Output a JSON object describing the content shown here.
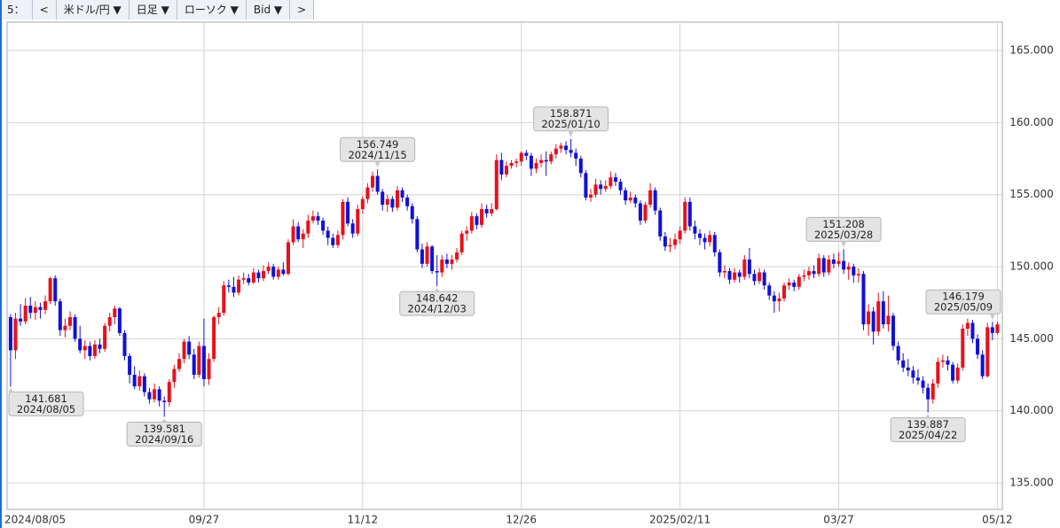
{
  "toolbar": [
    "5：",
    "<",
    "米ドル/円 ▼",
    "日足 ▼",
    "ローソク ▼",
    "Bid ▼",
    ">"
  ],
  "chart_data": {
    "type": "candlestick",
    "up_color": "#e8101c",
    "down_color": "#1010d8",
    "grid": true,
    "ylim": [
      133.16,
      166.97
    ],
    "yticks": [
      {
        "value": 135,
        "label": "135.000"
      },
      {
        "value": 140,
        "label": "140.000"
      },
      {
        "value": 145,
        "label": "145.000"
      },
      {
        "value": 150,
        "label": "150.000"
      },
      {
        "value": 155,
        "label": "155.000"
      },
      {
        "value": 160,
        "label": "160.000"
      },
      {
        "value": 165,
        "label": "165.000"
      }
    ],
    "xlim": [
      -0.7,
      200
    ],
    "xticks": [
      {
        "value": 0,
        "label": "2024/08/05"
      },
      {
        "value": 39,
        "label": "09/27"
      },
      {
        "value": 71,
        "label": "11/12"
      },
      {
        "value": 103,
        "label": "12/26"
      },
      {
        "value": 135,
        "label": "2025/02/11"
      },
      {
        "value": 167,
        "label": "03/27"
      },
      {
        "value": 199,
        "label": "05/12"
      }
    ],
    "annotations": [
      {
        "x": 0,
        "value": 141.681,
        "date": "2024/08/05"
      },
      {
        "x": 31,
        "value": 139.581,
        "date": "2024/09/16"
      },
      {
        "x": 74,
        "value": 156.749,
        "date": "2024/11/15"
      },
      {
        "x": 86,
        "value": 148.642,
        "date": "2024/12/03"
      },
      {
        "x": 113,
        "value": 158.871,
        "date": "2025/01/10"
      },
      {
        "x": 168,
        "value": 151.208,
        "date": "2025/03/28"
      },
      {
        "x": 185,
        "value": 139.887,
        "date": "2025/04/22"
      },
      {
        "x": 198,
        "value": 146.179,
        "date": "2025/05/09"
      }
    ],
    "candles": [
      [
        146.5,
        146.7,
        141.68,
        144.2
      ],
      [
        144.2,
        146.8,
        143.6,
        146.4
      ],
      [
        146.4,
        147.4,
        145.9,
        146.2
      ],
      [
        146.2,
        147.8,
        146.0,
        147.3
      ],
      [
        147.3,
        147.9,
        146.4,
        146.8
      ],
      [
        146.8,
        147.6,
        146.3,
        147.2
      ],
      [
        147.2,
        147.5,
        146.4,
        147.0
      ],
      [
        147.0,
        148.0,
        146.7,
        147.6
      ],
      [
        147.6,
        149.3,
        147.4,
        149.2
      ],
      [
        149.2,
        149.4,
        147.3,
        147.6
      ],
      [
        147.6,
        147.8,
        145.2,
        145.6
      ],
      [
        145.6,
        146.4,
        145.1,
        145.9
      ],
      [
        145.9,
        146.9,
        145.6,
        146.5
      ],
      [
        146.5,
        146.7,
        144.8,
        145.0
      ],
      [
        145.0,
        145.9,
        144.0,
        144.2
      ],
      [
        144.2,
        144.9,
        143.6,
        144.5
      ],
      [
        144.5,
        144.8,
        143.5,
        143.8
      ],
      [
        143.8,
        144.9,
        143.6,
        144.6
      ],
      [
        144.6,
        145.0,
        144.0,
        144.3
      ],
      [
        144.3,
        146.1,
        144.1,
        145.9
      ],
      [
        145.9,
        146.8,
        145.5,
        146.5
      ],
      [
        146.5,
        147.3,
        146.0,
        147.1
      ],
      [
        147.1,
        147.2,
        145.2,
        145.4
      ],
      [
        145.4,
        145.6,
        143.5,
        143.8
      ],
      [
        143.8,
        144.0,
        141.9,
        142.5
      ],
      [
        142.5,
        143.1,
        141.5,
        141.7
      ],
      [
        141.7,
        142.8,
        141.4,
        142.4
      ],
      [
        142.4,
        142.6,
        141.0,
        141.3
      ],
      [
        141.3,
        141.6,
        140.5,
        140.8
      ],
      [
        140.8,
        141.9,
        140.6,
        141.5
      ],
      [
        141.5,
        141.7,
        140.3,
        140.7
      ],
      [
        140.7,
        141.0,
        139.58,
        140.6
      ],
      [
        140.6,
        142.2,
        140.3,
        142.0
      ],
      [
        142.0,
        143.2,
        141.6,
        142.9
      ],
      [
        142.9,
        144.0,
        142.7,
        143.6
      ],
      [
        143.6,
        145.0,
        143.3,
        144.8
      ],
      [
        144.8,
        145.2,
        143.6,
        143.9
      ],
      [
        143.9,
        144.3,
        142.2,
        142.5
      ],
      [
        142.5,
        144.8,
        142.3,
        144.5
      ],
      [
        144.5,
        146.4,
        141.7,
        142.2
      ],
      [
        142.2,
        144.0,
        141.8,
        143.6
      ],
      [
        143.6,
        146.6,
        143.4,
        146.5
      ],
      [
        146.5,
        147.2,
        146.0,
        146.8
      ],
      [
        146.8,
        149.0,
        146.6,
        148.7
      ],
      [
        148.7,
        149.1,
        148.2,
        148.6
      ],
      [
        148.6,
        149.3,
        147.9,
        148.2
      ],
      [
        148.2,
        149.4,
        148.0,
        149.1
      ],
      [
        149.1,
        149.6,
        148.8,
        149.2
      ],
      [
        149.2,
        149.5,
        148.7,
        148.9
      ],
      [
        148.9,
        149.9,
        148.8,
        149.6
      ],
      [
        149.6,
        149.8,
        148.9,
        149.2
      ],
      [
        149.2,
        150.1,
        149.0,
        149.7
      ],
      [
        149.7,
        150.3,
        149.5,
        150.0
      ],
      [
        150.0,
        150.2,
        149.1,
        149.3
      ],
      [
        149.3,
        150.0,
        149.1,
        149.8
      ],
      [
        149.8,
        150.3,
        149.4,
        149.5
      ],
      [
        149.5,
        151.9,
        149.4,
        151.7
      ],
      [
        151.7,
        153.3,
        151.5,
        152.8
      ],
      [
        152.8,
        153.1,
        151.7,
        151.9
      ],
      [
        151.9,
        152.6,
        151.3,
        152.3
      ],
      [
        152.3,
        153.6,
        152.0,
        153.2
      ],
      [
        153.2,
        153.9,
        153.0,
        153.5
      ],
      [
        153.5,
        153.8,
        152.9,
        153.2
      ],
      [
        153.2,
        153.4,
        152.2,
        152.5
      ],
      [
        152.5,
        152.8,
        151.5,
        152.0
      ],
      [
        152.0,
        152.3,
        151.3,
        151.5
      ],
      [
        151.5,
        152.5,
        151.3,
        152.2
      ],
      [
        152.2,
        154.7,
        151.9,
        154.5
      ],
      [
        154.5,
        154.8,
        152.8,
        153.0
      ],
      [
        153.0,
        153.3,
        152.0,
        152.3
      ],
      [
        152.3,
        154.3,
        152.1,
        154.0
      ],
      [
        154.0,
        154.9,
        153.7,
        154.7
      ],
      [
        154.7,
        155.8,
        154.4,
        155.5
      ],
      [
        155.5,
        156.6,
        155.2,
        156.3
      ],
      [
        156.3,
        156.75,
        155.0,
        155.2
      ],
      [
        155.2,
        155.4,
        153.9,
        154.3
      ],
      [
        154.3,
        155.0,
        153.8,
        154.7
      ],
      [
        154.7,
        154.9,
        153.8,
        154.1
      ],
      [
        154.1,
        155.6,
        153.9,
        155.3
      ],
      [
        155.3,
        155.5,
        154.5,
        154.8
      ],
      [
        154.8,
        155.0,
        153.9,
        154.2
      ],
      [
        154.2,
        154.4,
        153.0,
        153.3
      ],
      [
        153.3,
        153.5,
        151.0,
        151.2
      ],
      [
        151.2,
        151.6,
        149.9,
        150.2
      ],
      [
        150.2,
        151.7,
        150.0,
        151.4
      ],
      [
        151.4,
        151.5,
        149.5,
        149.7
      ],
      [
        149.7,
        150.8,
        148.64,
        149.6
      ],
      [
        149.6,
        150.8,
        149.3,
        150.5
      ],
      [
        150.5,
        150.9,
        149.9,
        150.2
      ],
      [
        150.2,
        150.8,
        149.8,
        150.5
      ],
      [
        150.5,
        151.3,
        150.3,
        151.0
      ],
      [
        151.0,
        152.5,
        150.8,
        152.3
      ],
      [
        152.3,
        152.8,
        151.8,
        152.5
      ],
      [
        152.5,
        153.8,
        152.3,
        153.5
      ],
      [
        153.5,
        153.7,
        152.6,
        152.9
      ],
      [
        152.9,
        154.4,
        152.7,
        154.0
      ],
      [
        154.0,
        154.3,
        153.4,
        153.7
      ],
      [
        153.7,
        154.4,
        153.5,
        154.0
      ],
      [
        154.0,
        157.8,
        153.9,
        157.4
      ],
      [
        157.4,
        157.9,
        156.0,
        156.4
      ],
      [
        156.4,
        157.3,
        156.2,
        157.0
      ],
      [
        157.0,
        157.4,
        156.8,
        157.2
      ],
      [
        157.2,
        157.5,
        156.9,
        157.3
      ],
      [
        157.3,
        158.0,
        157.0,
        157.9
      ],
      [
        157.9,
        158.1,
        157.4,
        157.7
      ],
      [
        157.7,
        157.9,
        156.3,
        156.8
      ],
      [
        156.8,
        157.5,
        156.5,
        157.2
      ],
      [
        157.2,
        157.8,
        156.9,
        157.4
      ],
      [
        157.4,
        158.0,
        156.3,
        157.3
      ],
      [
        157.3,
        158.0,
        157.1,
        157.8
      ],
      [
        157.8,
        158.5,
        157.5,
        158.2
      ],
      [
        158.2,
        158.6,
        157.9,
        158.4
      ],
      [
        158.4,
        158.7,
        157.8,
        158.1
      ],
      [
        158.1,
        158.87,
        157.6,
        157.9
      ],
      [
        157.9,
        158.2,
        157.0,
        157.5
      ],
      [
        157.5,
        157.7,
        156.2,
        156.5
      ],
      [
        156.5,
        156.7,
        154.6,
        154.8
      ],
      [
        154.8,
        155.4,
        154.5,
        155.0
      ],
      [
        155.0,
        156.1,
        154.8,
        155.7
      ],
      [
        155.7,
        156.0,
        155.0,
        155.4
      ],
      [
        155.4,
        156.0,
        155.2,
        155.6
      ],
      [
        155.6,
        156.6,
        155.4,
        156.2
      ],
      [
        156.2,
        156.5,
        155.6,
        155.9
      ],
      [
        155.9,
        156.1,
        155.0,
        155.3
      ],
      [
        155.3,
        155.5,
        154.3,
        154.6
      ],
      [
        154.6,
        155.2,
        154.4,
        154.8
      ],
      [
        154.8,
        155.0,
        154.1,
        154.4
      ],
      [
        154.4,
        154.6,
        152.9,
        153.2
      ],
      [
        153.2,
        154.5,
        153.0,
        154.3
      ],
      [
        154.3,
        155.8,
        154.1,
        155.3
      ],
      [
        155.3,
        155.5,
        153.6,
        153.9
      ],
      [
        153.9,
        154.1,
        151.8,
        152.1
      ],
      [
        152.1,
        152.4,
        151.1,
        151.4
      ],
      [
        151.4,
        152.0,
        151.0,
        151.5
      ],
      [
        151.5,
        152.3,
        151.2,
        151.9
      ],
      [
        151.9,
        152.8,
        151.6,
        152.5
      ],
      [
        152.5,
        154.8,
        152.3,
        154.5
      ],
      [
        154.5,
        154.8,
        152.5,
        152.8
      ],
      [
        152.8,
        153.2,
        151.9,
        152.3
      ],
      [
        152.3,
        152.6,
        151.5,
        152.0
      ],
      [
        152.0,
        152.3,
        151.2,
        151.7
      ],
      [
        151.7,
        152.5,
        151.4,
        152.2
      ],
      [
        152.2,
        152.4,
        150.7,
        151.0
      ],
      [
        151.0,
        151.2,
        149.3,
        149.6
      ],
      [
        149.6,
        150.1,
        149.2,
        149.7
      ],
      [
        149.7,
        149.9,
        148.8,
        149.1
      ],
      [
        149.1,
        149.9,
        148.9,
        149.6
      ],
      [
        149.6,
        149.8,
        148.9,
        149.3
      ],
      [
        149.3,
        150.8,
        149.1,
        150.5
      ],
      [
        150.5,
        151.3,
        149.2,
        149.5
      ],
      [
        149.5,
        149.8,
        148.7,
        149.0
      ],
      [
        149.0,
        149.9,
        148.8,
        149.6
      ],
      [
        149.6,
        149.8,
        148.4,
        148.7
      ],
      [
        148.7,
        148.9,
        147.7,
        148.0
      ],
      [
        148.0,
        148.3,
        146.8,
        147.6
      ],
      [
        147.6,
        148.2,
        146.9,
        147.8
      ],
      [
        147.8,
        148.9,
        147.6,
        148.7
      ],
      [
        148.7,
        149.2,
        148.4,
        148.9
      ],
      [
        148.9,
        149.1,
        148.3,
        148.6
      ],
      [
        148.6,
        149.5,
        148.4,
        149.3
      ],
      [
        149.3,
        149.8,
        149.0,
        149.4
      ],
      [
        149.4,
        150.0,
        149.1,
        149.7
      ],
      [
        149.7,
        150.1,
        149.2,
        149.5
      ],
      [
        149.5,
        150.9,
        149.3,
        150.6
      ],
      [
        150.6,
        150.8,
        149.3,
        149.6
      ],
      [
        149.6,
        150.8,
        149.4,
        150.5
      ],
      [
        150.5,
        150.9,
        149.9,
        150.2
      ],
      [
        150.2,
        151.0,
        150.0,
        150.4
      ],
      [
        150.4,
        151.21,
        149.5,
        149.8
      ],
      [
        149.8,
        150.3,
        149.1,
        150.0
      ],
      [
        150.0,
        150.2,
        148.9,
        149.4
      ],
      [
        149.4,
        149.9,
        148.9,
        149.5
      ],
      [
        149.5,
        149.7,
        145.6,
        146.0
      ],
      [
        146.0,
        147.4,
        145.2,
        146.9
      ],
      [
        146.9,
        147.2,
        144.6,
        145.5
      ],
      [
        145.5,
        148.2,
        145.2,
        147.6
      ],
      [
        147.6,
        148.3,
        145.7,
        146.0
      ],
      [
        146.0,
        148.0,
        145.5,
        146.6
      ],
      [
        146.6,
        146.8,
        144.2,
        144.5
      ],
      [
        144.5,
        144.8,
        143.2,
        143.5
      ],
      [
        143.5,
        144.0,
        142.7,
        143.0
      ],
      [
        143.0,
        143.6,
        142.4,
        142.8
      ],
      [
        142.8,
        143.1,
        141.9,
        142.3
      ],
      [
        142.3,
        142.9,
        141.8,
        142.1
      ],
      [
        142.1,
        142.4,
        141.2,
        141.6
      ],
      [
        141.6,
        141.9,
        139.89,
        140.8
      ],
      [
        140.8,
        142.2,
        140.5,
        141.9
      ],
      [
        141.9,
        143.7,
        141.6,
        143.4
      ],
      [
        143.4,
        143.9,
        143.0,
        143.5
      ],
      [
        143.5,
        143.8,
        142.8,
        143.2
      ],
      [
        143.2,
        143.4,
        141.9,
        142.1
      ],
      [
        142.1,
        143.3,
        141.9,
        143.0
      ],
      [
        143.0,
        146.0,
        142.8,
        145.7
      ],
      [
        145.7,
        146.4,
        145.2,
        146.1
      ],
      [
        146.1,
        146.3,
        144.7,
        145.0
      ],
      [
        145.0,
        145.3,
        143.6,
        143.9
      ],
      [
        143.9,
        144.2,
        142.2,
        142.4
      ],
      [
        142.4,
        146.1,
        142.3,
        145.8
      ],
      [
        145.8,
        146.18,
        144.9,
        145.4
      ],
      [
        145.4,
        146.2,
        145.3,
        146.0
      ]
    ]
  }
}
